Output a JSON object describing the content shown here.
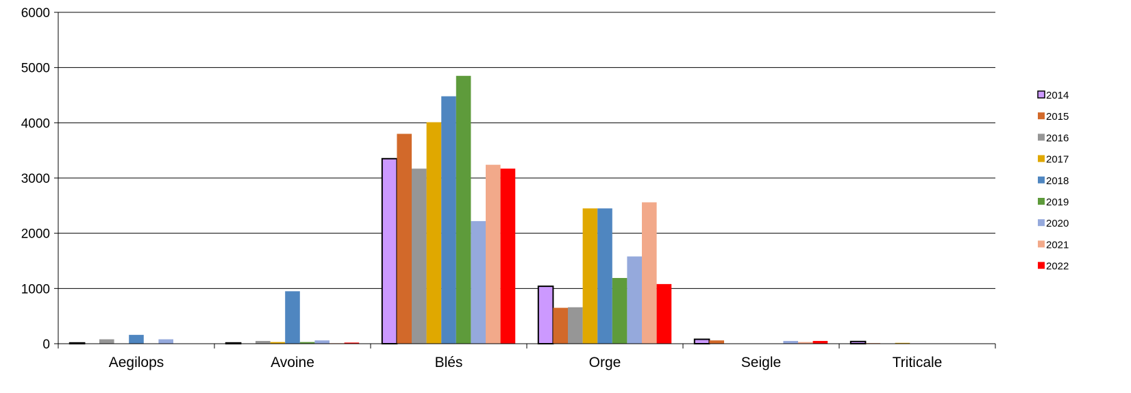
{
  "chart_data": {
    "type": "bar",
    "title": "",
    "xlabel": "",
    "ylabel": "",
    "ylim": [
      0,
      6000
    ],
    "yticks": [
      0,
      1000,
      2000,
      3000,
      4000,
      5000,
      6000
    ],
    "grid": true,
    "legend_position": "right",
    "categories": [
      "Aegilops",
      "Avoine",
      "Blés",
      "Orge",
      "Seigle",
      "Triticale"
    ],
    "series": [
      {
        "name": "2014",
        "color": "#cc99ff",
        "outlined": true,
        "values": [
          15,
          15,
          3350,
          1040,
          80,
          40
        ]
      },
      {
        "name": "2015",
        "color": "#d2692a",
        "values": [
          0,
          0,
          3800,
          650,
          60,
          10
        ]
      },
      {
        "name": "2016",
        "color": "#969696",
        "values": [
          80,
          50,
          3170,
          660,
          0,
          0
        ]
      },
      {
        "name": "2017",
        "color": "#e0a800",
        "values": [
          0,
          30,
          4010,
          2450,
          0,
          15
        ]
      },
      {
        "name": "2018",
        "color": "#4f86c0",
        "values": [
          160,
          950,
          4480,
          2450,
          0,
          0
        ]
      },
      {
        "name": "2019",
        "color": "#5e9b3b",
        "values": [
          0,
          30,
          4850,
          1190,
          0,
          0
        ]
      },
      {
        "name": "2020",
        "color": "#95a9dc",
        "values": [
          80,
          60,
          2220,
          1580,
          50,
          0
        ]
      },
      {
        "name": "2021",
        "color": "#f2a98a",
        "values": [
          0,
          10,
          3240,
          2560,
          30,
          0
        ]
      },
      {
        "name": "2022",
        "color": "#ff0000",
        "values": [
          0,
          20,
          3170,
          1080,
          50,
          0
        ]
      }
    ]
  }
}
